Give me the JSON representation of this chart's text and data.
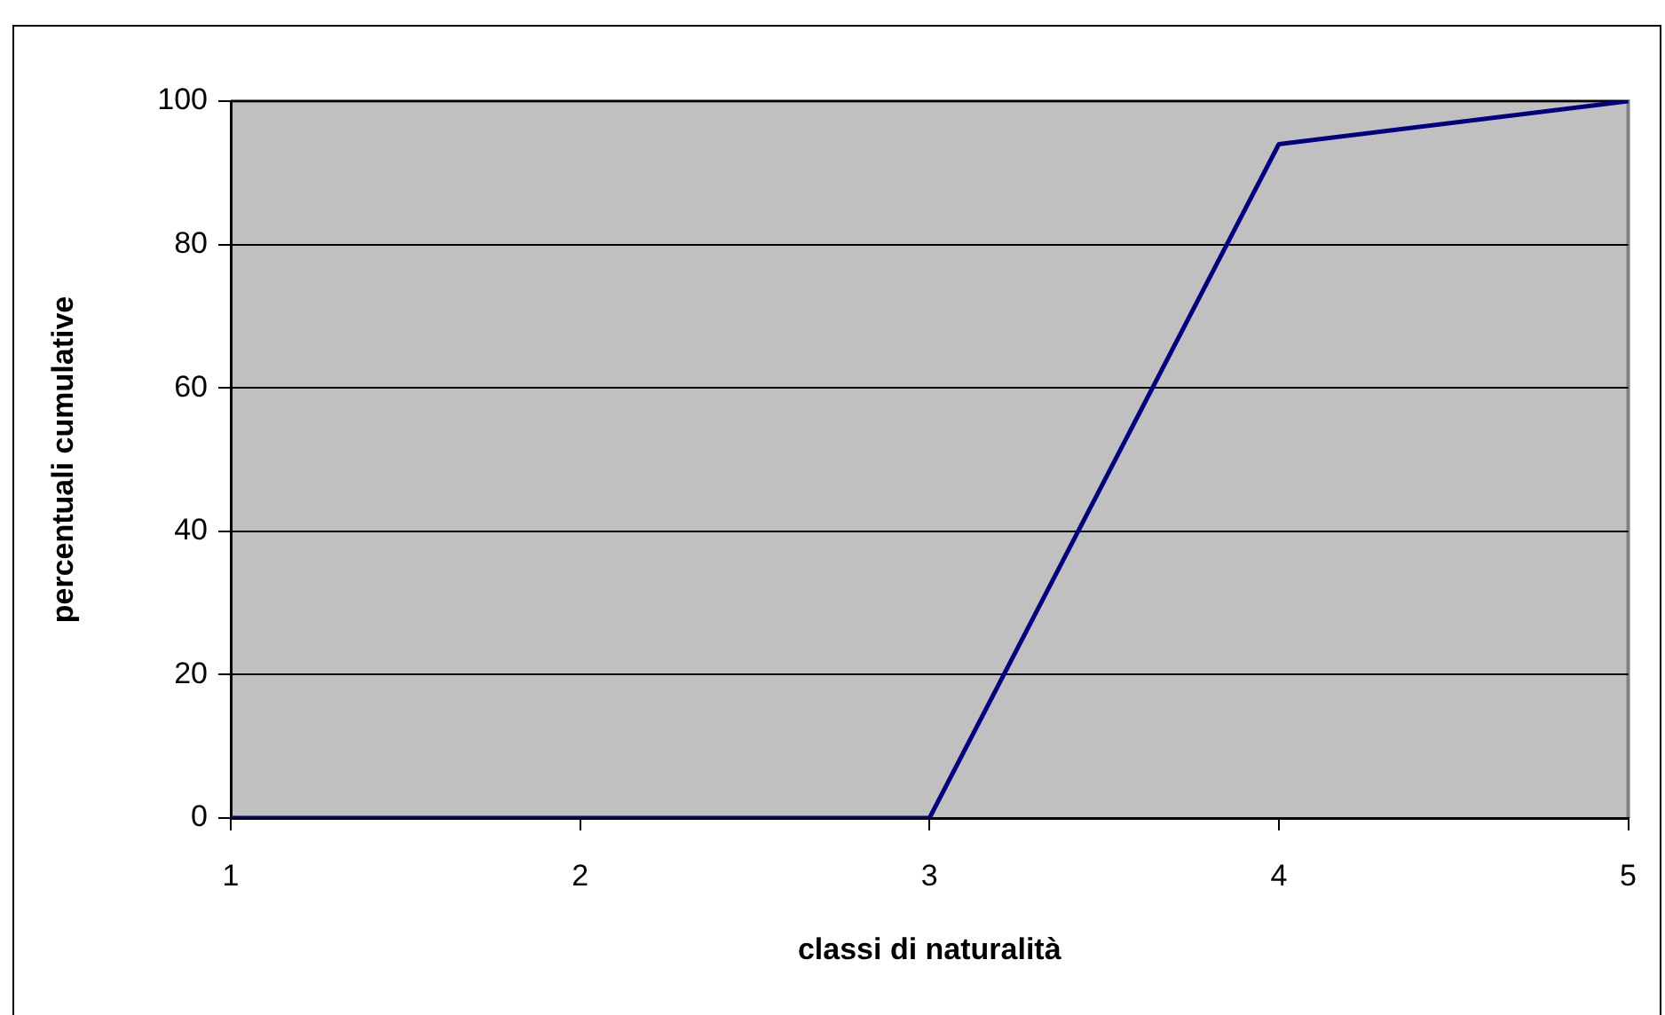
{
  "chart_data": {
    "type": "line",
    "xlabel": "classi di naturalità",
    "ylabel": "percentuali cumulative",
    "categories": [
      "1",
      "2",
      "3",
      "4",
      "5"
    ],
    "series": [
      {
        "color": "#000080",
        "values": [
          0,
          0,
          0,
          94,
          100
        ]
      }
    ],
    "ylim": [
      0,
      100
    ],
    "yticks": [
      0,
      20,
      40,
      60,
      80,
      100
    ],
    "grid": "y",
    "legend": false,
    "marker": "none",
    "line_style": "solid"
  }
}
